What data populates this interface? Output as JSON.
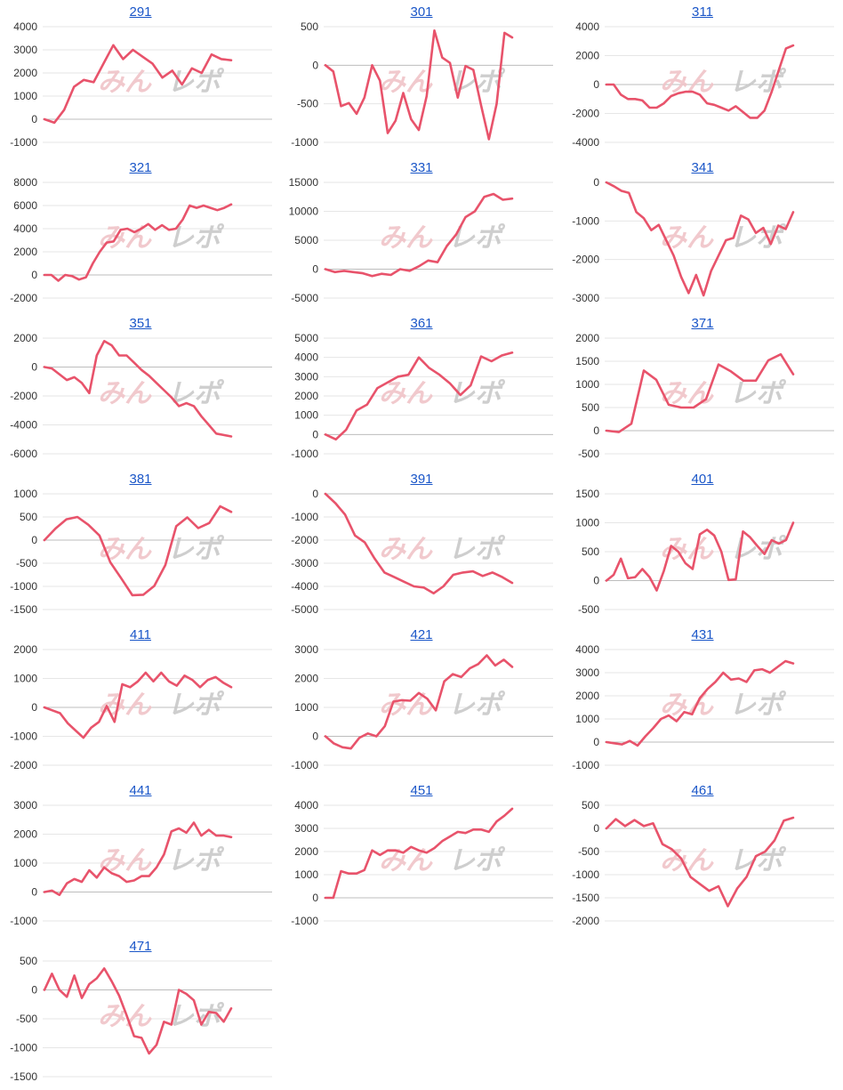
{
  "watermark": {
    "kana": "みんレポ"
  },
  "colors": {
    "line": "#e8536b",
    "grid": "#e6e6e6",
    "zero": "#bdbdbd",
    "title": "#1a56c8"
  },
  "chart_data": [
    {
      "type": "line",
      "title": "291",
      "yticks": [
        4000,
        3000,
        2000,
        1000,
        0,
        -1000
      ],
      "ylim": [
        -1000,
        4000
      ],
      "grid": true,
      "series": [
        {
          "values": [
            0,
            -150,
            400,
            1400,
            1700,
            1600,
            2400,
            3200,
            2600,
            3000,
            2700,
            2400,
            1800,
            2100,
            1500,
            2200,
            2000,
            2800,
            2600,
            2550
          ]
        }
      ]
    },
    {
      "type": "line",
      "title": "301",
      "yticks": [
        500,
        0,
        -500,
        -1000
      ],
      "ylim": [
        -1000,
        500
      ],
      "grid": true,
      "series": [
        {
          "values": [
            0,
            -80,
            -530,
            -490,
            -630,
            -420,
            0,
            -200,
            -880,
            -720,
            -360,
            -700,
            -840,
            -400,
            450,
            100,
            30,
            -420,
            -10,
            -60,
            -520,
            -960,
            -500,
            420,
            360
          ]
        }
      ]
    },
    {
      "type": "line",
      "title": "311",
      "yticks": [
        4000,
        2000,
        0,
        -2000,
        -4000
      ],
      "ylim": [
        -4000,
        4000
      ],
      "grid": true,
      "series": [
        {
          "values": [
            0,
            0,
            -700,
            -1000,
            -1000,
            -1100,
            -1600,
            -1600,
            -1300,
            -800,
            -600,
            -500,
            -500,
            -700,
            -1300,
            -1400,
            -1600,
            -1800,
            -1500,
            -1900,
            -2300,
            -2300,
            -1800,
            -500,
            1000,
            2500,
            2700
          ]
        }
      ]
    },
    {
      "type": "line",
      "title": "321",
      "yticks": [
        8000,
        6000,
        4000,
        2000,
        0,
        -2000
      ],
      "ylim": [
        -2000,
        8000
      ],
      "grid": true,
      "series": [
        {
          "values": [
            0,
            0,
            -500,
            0,
            -100,
            -400,
            -200,
            1000,
            2000,
            2800,
            2900,
            3900,
            4000,
            3700,
            4000,
            4400,
            3900,
            4300,
            3900,
            4000,
            4800,
            6000,
            5800,
            6000,
            5800,
            5600,
            5800,
            6100
          ]
        }
      ]
    },
    {
      "type": "line",
      "title": "331",
      "yticks": [
        15000,
        10000,
        5000,
        0,
        -5000
      ],
      "ylim": [
        -5000,
        15000
      ],
      "grid": true,
      "series": [
        {
          "values": [
            0,
            -500,
            -300,
            -500,
            -700,
            -1200,
            -800,
            -1000,
            0,
            -300,
            500,
            1500,
            1200,
            4000,
            6000,
            9000,
            10000,
            12500,
            13000,
            12000,
            12200
          ]
        }
      ]
    },
    {
      "type": "line",
      "title": "341",
      "yticks": [
        0,
        -1000,
        -2000,
        -3000
      ],
      "ylim": [
        -3000,
        0
      ],
      "grid": true,
      "series": [
        {
          "values": [
            0,
            -100,
            -220,
            -270,
            -770,
            -930,
            -1240,
            -1100,
            -1500,
            -1900,
            -2450,
            -2870,
            -2400,
            -2930,
            -2300,
            -1900,
            -1500,
            -1440,
            -860,
            -960,
            -1310,
            -1180,
            -1600,
            -1120,
            -1210,
            -770
          ]
        }
      ]
    },
    {
      "type": "line",
      "title": "351",
      "yticks": [
        2000,
        0,
        -2000,
        -4000,
        -6000
      ],
      "ylim": [
        -6000,
        2000
      ],
      "grid": true,
      "series": [
        {
          "values": [
            0,
            -100,
            -500,
            -900,
            -700,
            -1100,
            -1800,
            800,
            1800,
            1500,
            800,
            800,
            300,
            -200,
            -600,
            -1100,
            -1600,
            -2100,
            -2700,
            -2500,
            -2700,
            -3400,
            -4000,
            -4600,
            -4700,
            -4800
          ]
        }
      ]
    },
    {
      "type": "line",
      "title": "361",
      "yticks": [
        5000,
        4000,
        3000,
        2000,
        1000,
        0,
        -1000
      ],
      "ylim": [
        -1000,
        5000
      ],
      "grid": true,
      "series": [
        {
          "values": [
            0,
            -250,
            250,
            1250,
            1550,
            2400,
            2700,
            3000,
            3100,
            4000,
            3450,
            3100,
            2650,
            2050,
            2550,
            4050,
            3800,
            4100,
            4250
          ]
        }
      ]
    },
    {
      "type": "line",
      "title": "371",
      "yticks": [
        2000,
        1500,
        1000,
        500,
        0,
        -500
      ],
      "ylim": [
        -500,
        2000
      ],
      "grid": true,
      "series": [
        {
          "values": [
            0,
            -30,
            150,
            1300,
            1100,
            560,
            500,
            500,
            680,
            1430,
            1280,
            1080,
            1080,
            1520,
            1650,
            1220
          ]
        }
      ]
    },
    {
      "type": "line",
      "title": "381",
      "yticks": [
        1000,
        500,
        0,
        -500,
        -1000,
        -1500
      ],
      "ylim": [
        -1500,
        1000
      ],
      "grid": true,
      "series": [
        {
          "values": [
            0,
            250,
            450,
            500,
            330,
            100,
            -480,
            -830,
            -1190,
            -1180,
            -990,
            -540,
            300,
            490,
            260,
            370,
            730,
            610
          ]
        }
      ]
    },
    {
      "type": "line",
      "title": "391",
      "yticks": [
        0,
        -1000,
        -2000,
        -3000,
        -4000,
        -5000
      ],
      "ylim": [
        -5000,
        0
      ],
      "grid": true,
      "series": [
        {
          "values": [
            0,
            -400,
            -900,
            -1800,
            -2100,
            -2800,
            -3400,
            -3600,
            -3800,
            -4000,
            -4050,
            -4300,
            -4000,
            -3500,
            -3400,
            -3350,
            -3550,
            -3400,
            -3600,
            -3850
          ]
        }
      ]
    },
    {
      "type": "line",
      "title": "401",
      "yticks": [
        1500,
        1000,
        500,
        0,
        -500
      ],
      "ylim": [
        -500,
        1500
      ],
      "grid": true,
      "series": [
        {
          "values": [
            0,
            100,
            380,
            40,
            60,
            200,
            60,
            -170,
            170,
            600,
            500,
            300,
            200,
            800,
            880,
            780,
            500,
            10,
            20,
            850,
            750,
            600,
            460,
            700,
            640,
            700,
            1000
          ]
        }
      ]
    },
    {
      "type": "line",
      "title": "411",
      "yticks": [
        2000,
        1000,
        0,
        -1000,
        -2000
      ],
      "ylim": [
        -2000,
        2000
      ],
      "grid": true,
      "series": [
        {
          "values": [
            0,
            -100,
            -200,
            -550,
            -800,
            -1050,
            -700,
            -500,
            50,
            -500,
            800,
            700,
            900,
            1200,
            900,
            1200,
            900,
            750,
            1100,
            950,
            700,
            950,
            1050,
            850,
            700
          ]
        }
      ]
    },
    {
      "type": "line",
      "title": "421",
      "yticks": [
        3000,
        2000,
        1000,
        0,
        -1000
      ],
      "ylim": [
        -1000,
        3000
      ],
      "grid": true,
      "series": [
        {
          "values": [
            0,
            -250,
            -380,
            -420,
            -50,
            100,
            0,
            350,
            1200,
            1250,
            1230,
            1500,
            1300,
            900,
            1900,
            2150,
            2050,
            2350,
            2500,
            2800,
            2450,
            2650,
            2400
          ]
        }
      ]
    },
    {
      "type": "line",
      "title": "431",
      "yticks": [
        4000,
        3000,
        2000,
        1000,
        0,
        -1000
      ],
      "ylim": [
        -1000,
        4000
      ],
      "grid": true,
      "series": [
        {
          "values": [
            0,
            -50,
            -100,
            50,
            -150,
            250,
            600,
            1000,
            1150,
            900,
            1300,
            1200,
            1900,
            2300,
            2600,
            3000,
            2700,
            2750,
            2600,
            3100,
            3150,
            3000,
            3250,
            3500,
            3400
          ]
        }
      ]
    },
    {
      "type": "line",
      "title": "441",
      "yticks": [
        3000,
        2000,
        1000,
        0,
        -1000
      ],
      "ylim": [
        -1000,
        3000
      ],
      "grid": true,
      "series": [
        {
          "values": [
            0,
            50,
            -100,
            300,
            450,
            350,
            750,
            500,
            850,
            650,
            550,
            350,
            400,
            550,
            550,
            850,
            1300,
            2100,
            2200,
            2050,
            2400,
            1950,
            2150,
            1950,
            1950,
            1900
          ]
        }
      ]
    },
    {
      "type": "line",
      "title": "451",
      "yticks": [
        4000,
        3000,
        2000,
        1000,
        0,
        -1000
      ],
      "ylim": [
        -1000,
        4000
      ],
      "grid": true,
      "series": [
        {
          "values": [
            0,
            0,
            1150,
            1050,
            1050,
            1200,
            2050,
            1850,
            2050,
            2050,
            1950,
            2200,
            2050,
            1950,
            2150,
            2450,
            2650,
            2850,
            2800,
            2950,
            2950,
            2850,
            3300,
            3550,
            3850
          ]
        }
      ]
    },
    {
      "type": "line",
      "title": "461",
      "yticks": [
        500,
        0,
        -500,
        -1000,
        -1500,
        -2000
      ],
      "ylim": [
        -2000,
        500
      ],
      "grid": true,
      "series": [
        {
          "values": [
            0,
            200,
            50,
            180,
            50,
            110,
            -340,
            -450,
            -650,
            -1050,
            -1200,
            -1350,
            -1250,
            -1680,
            -1300,
            -1050,
            -600,
            -500,
            -260,
            170,
            230
          ]
        }
      ]
    },
    {
      "type": "line",
      "title": "471",
      "yticks": [
        500,
        0,
        -500,
        -1000,
        -1500
      ],
      "ylim": [
        -1500,
        500
      ],
      "grid": true,
      "series": [
        {
          "values": [
            0,
            280,
            0,
            -120,
            250,
            -140,
            100,
            200,
            370,
            150,
            -100,
            -440,
            -800,
            -830,
            -1100,
            -950,
            -550,
            -600,
            0,
            -70,
            -180,
            -600,
            -380,
            -400,
            -550,
            -320
          ]
        }
      ]
    }
  ]
}
